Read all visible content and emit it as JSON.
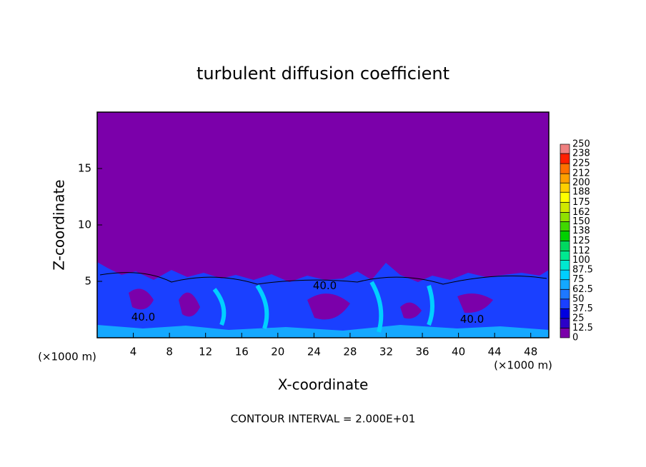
{
  "chart_data": {
    "type": "contour",
    "title": "turbulent diffusion coefficient",
    "xlabel": "X-coordinate",
    "ylabel": "Z-coordinate",
    "xunit": "(×1000 m)",
    "yunit": "(×1000 m)",
    "xlim": [
      0,
      50
    ],
    "ylim": [
      0,
      20
    ],
    "xticks": [
      4,
      8,
      12,
      16,
      20,
      24,
      28,
      32,
      36,
      40,
      44,
      48
    ],
    "yticks": [
      5,
      10,
      15
    ],
    "background_color": "#7b00aa",
    "colorbar": {
      "clim": [
        0,
        250
      ],
      "levels": [
        0,
        12.5,
        25,
        37.5,
        50,
        62.5,
        75,
        87.5,
        100,
        112,
        125,
        138,
        150,
        162,
        175,
        188,
        200,
        212,
        225,
        238,
        250
      ],
      "colors": [
        "#7b00aa",
        "#2c00c8",
        "#0000e0",
        "#1a40ff",
        "#1e78ff",
        "#14a8ff",
        "#00d0ff",
        "#00e8d0",
        "#00e890",
        "#00d860",
        "#00d000",
        "#40d800",
        "#90e000",
        "#d0e800",
        "#ffff00",
        "#ffd000",
        "#ffa000",
        "#ff7000",
        "#ff2000",
        "#f08080"
      ]
    },
    "contour_labels": [
      {
        "value": 40,
        "label": "40.0",
        "x": 5.1,
        "y": 1.8
      },
      {
        "value": 40,
        "label": "40.0",
        "x": 25.2,
        "y": 4.6
      },
      {
        "value": 40,
        "label": "40.0",
        "x": 41.5,
        "y": 1.6
      }
    ],
    "footnote": "CONTOUR INTERVAL = 2.000E+01"
  }
}
